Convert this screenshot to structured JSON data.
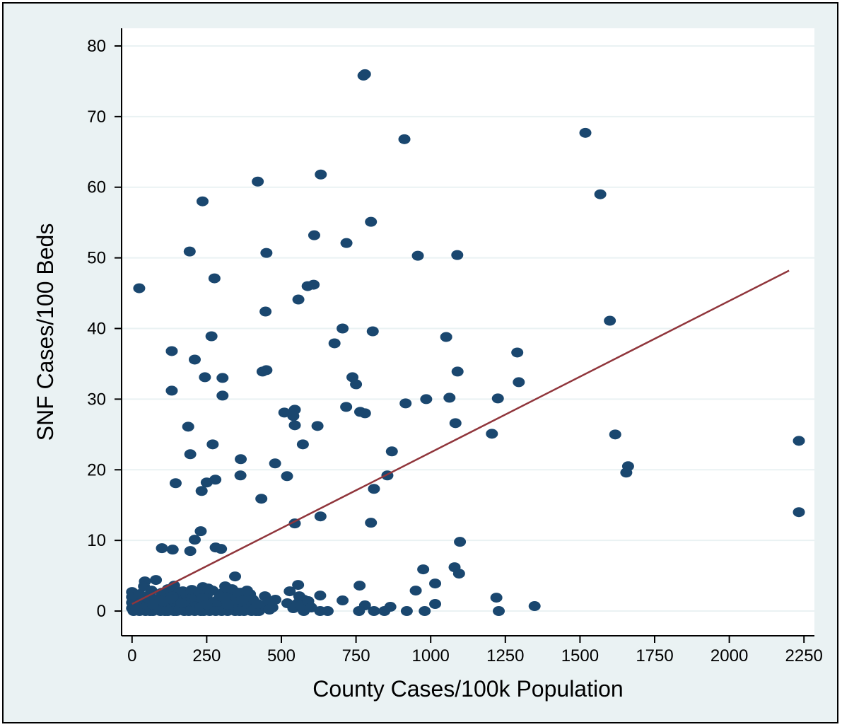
{
  "colors": {
    "outer_background": "#eaf2f3",
    "plot_background": "#ffffff",
    "grid": "#eaf2f3",
    "points": "#1a476f",
    "fit_line": "#90353b",
    "axis": "#000000"
  },
  "chart_data": {
    "type": "scatter",
    "title": "",
    "xlabel": "County Cases/100k Population",
    "ylabel": "SNF Cases/100 Beds",
    "xlim": [
      -35,
      2285
    ],
    "ylim": [
      -3.5,
      82.5
    ],
    "x_ticks": [
      0,
      250,
      500,
      750,
      1000,
      1250,
      1500,
      1750,
      2000,
      2250
    ],
    "y_ticks": [
      0,
      10,
      20,
      30,
      40,
      50,
      60,
      70,
      80
    ],
    "grid": "horizontal",
    "legend": "none",
    "fit_line": {
      "x": [
        0,
        2200
      ],
      "y": [
        1.0,
        48.2
      ]
    },
    "series": [
      {
        "points": [
          [
            780,
            76.0
          ],
          [
            775,
            75.8
          ],
          [
            912,
            66.8
          ],
          [
            1518,
            67.7
          ],
          [
            632,
            61.8
          ],
          [
            421,
            60.8
          ],
          [
            1568,
            59.0
          ],
          [
            236,
            58.0
          ],
          [
            800,
            55.1
          ],
          [
            610,
            53.2
          ],
          [
            718,
            52.1
          ],
          [
            193,
            50.9
          ],
          [
            450,
            50.7
          ],
          [
            957,
            50.3
          ],
          [
            1089,
            50.4
          ],
          [
            276,
            47.1
          ],
          [
            24,
            45.7
          ],
          [
            588,
            46.0
          ],
          [
            608,
            46.2
          ],
          [
            557,
            44.1
          ],
          [
            447,
            42.4
          ],
          [
            1600,
            41.1
          ],
          [
            705,
            40.0
          ],
          [
            806,
            39.6
          ],
          [
            266,
            38.9
          ],
          [
            678,
            37.9
          ],
          [
            1052,
            38.8
          ],
          [
            133,
            36.8
          ],
          [
            1290,
            36.6
          ],
          [
            210,
            35.6
          ],
          [
            437,
            33.9
          ],
          [
            450,
            34.1
          ],
          [
            1090,
            33.9
          ],
          [
            244,
            33.1
          ],
          [
            303,
            33.0
          ],
          [
            738,
            33.1
          ],
          [
            750,
            32.1
          ],
          [
            1295,
            32.4
          ],
          [
            133,
            31.2
          ],
          [
            303,
            30.5
          ],
          [
            1225,
            30.1
          ],
          [
            985,
            30.0
          ],
          [
            1063,
            30.2
          ],
          [
            916,
            29.4
          ],
          [
            717,
            28.9
          ],
          [
            510,
            28.1
          ],
          [
            545,
            28.5
          ],
          [
            764,
            28.2
          ],
          [
            780,
            28.0
          ],
          [
            540,
            27.6
          ],
          [
            1083,
            26.6
          ],
          [
            188,
            26.1
          ],
          [
            545,
            26.3
          ],
          [
            621,
            26.2
          ],
          [
            1205,
            25.1
          ],
          [
            1618,
            25.0
          ],
          [
            2233,
            24.1
          ],
          [
            270,
            23.6
          ],
          [
            572,
            23.6
          ],
          [
            195,
            22.2
          ],
          [
            870,
            22.6
          ],
          [
            364,
            21.5
          ],
          [
            479,
            20.9
          ],
          [
            1661,
            20.5
          ],
          [
            1655,
            19.6
          ],
          [
            363,
            19.2
          ],
          [
            519,
            19.1
          ],
          [
            855,
            19.2
          ],
          [
            279,
            18.6
          ],
          [
            250,
            18.2
          ],
          [
            146,
            18.1
          ],
          [
            810,
            17.3
          ],
          [
            233,
            17.0
          ],
          [
            433,
            15.9
          ],
          [
            631,
            13.4
          ],
          [
            2233,
            14.0
          ],
          [
            545,
            12.4
          ],
          [
            800,
            12.5
          ],
          [
            230,
            11.3
          ],
          [
            210,
            10.1
          ],
          [
            1098,
            9.8
          ],
          [
            100,
            8.9
          ],
          [
            136,
            8.7
          ],
          [
            195,
            8.5
          ],
          [
            280,
            9.0
          ],
          [
            298,
            8.8
          ],
          [
            1080,
            6.2
          ],
          [
            975,
            5.9
          ],
          [
            1095,
            5.3
          ],
          [
            345,
            4.9
          ],
          [
            80,
            4.4
          ],
          [
            43,
            4.2
          ],
          [
            1015,
            3.9
          ],
          [
            141,
            3.6
          ],
          [
            556,
            3.7
          ],
          [
            762,
            3.6
          ],
          [
            950,
            2.9
          ],
          [
            312,
            3.5
          ],
          [
            237,
            3.4
          ],
          [
            528,
            2.8
          ],
          [
            0,
            2.7
          ],
          [
            630,
            2.2
          ],
          [
            445,
            2.1
          ],
          [
            1220,
            1.9
          ],
          [
            480,
            1.6
          ],
          [
            705,
            1.5
          ],
          [
            575,
            1.6
          ],
          [
            520,
            1.1
          ],
          [
            1015,
            1.0
          ],
          [
            1348,
            0.7
          ],
          [
            865,
            0.6
          ],
          [
            780,
            0.8
          ],
          [
            760,
            0.0
          ],
          [
            810,
            0.0
          ],
          [
            845,
            0.0
          ],
          [
            920,
            0.0
          ],
          [
            980,
            0.0
          ],
          [
            1228,
            0.0
          ],
          [
            630,
            0.0
          ],
          [
            655,
            0.0
          ],
          [
            575,
            0.0
          ],
          [
            425,
            0.0
          ],
          [
            415,
            0.0
          ],
          [
            375,
            0.0
          ],
          [
            345,
            0.0
          ],
          [
            320,
            0.0
          ],
          [
            280,
            0.0
          ],
          [
            260,
            0.0
          ],
          [
            230,
            0.0
          ],
          [
            210,
            0.0
          ],
          [
            175,
            0.0
          ],
          [
            150,
            0.0
          ],
          [
            120,
            0.0
          ],
          [
            95,
            0.0
          ],
          [
            70,
            0.0
          ],
          [
            45,
            0.0
          ],
          [
            25,
            0.0
          ],
          [
            5,
            0.0
          ],
          [
            0,
            0.4
          ],
          [
            0,
            1.2
          ],
          [
            0,
            2.0
          ],
          [
            10,
            0.8
          ],
          [
            15,
            1.6
          ],
          [
            30,
            0.3
          ],
          [
            35,
            1.4
          ],
          [
            50,
            0.9
          ],
          [
            55,
            2.2
          ],
          [
            60,
            0.5
          ],
          [
            75,
            1.7
          ],
          [
            85,
            0.6
          ],
          [
            90,
            1.1
          ],
          [
            105,
            0.4
          ],
          [
            110,
            1.9
          ],
          [
            115,
            0.9
          ],
          [
            125,
            1.4
          ],
          [
            130,
            0.3
          ],
          [
            145,
            1.0
          ],
          [
            155,
            2.5
          ],
          [
            160,
            0.6
          ],
          [
            170,
            1.5
          ],
          [
            180,
            0.8
          ],
          [
            185,
            1.9
          ],
          [
            195,
            2.4
          ],
          [
            200,
            0.4
          ],
          [
            205,
            1.2
          ],
          [
            215,
            0.7
          ],
          [
            220,
            2.0
          ],
          [
            240,
            1.4
          ],
          [
            245,
            0.5
          ],
          [
            250,
            2.2
          ],
          [
            265,
            1.0
          ],
          [
            270,
            2.9
          ],
          [
            285,
            0.6
          ],
          [
            290,
            1.7
          ],
          [
            300,
            1.1
          ],
          [
            305,
            2.6
          ],
          [
            315,
            0.4
          ],
          [
            325,
            1.4
          ],
          [
            330,
            2.1
          ],
          [
            340,
            0.8
          ],
          [
            350,
            1.8
          ],
          [
            360,
            0.3
          ],
          [
            365,
            2.6
          ],
          [
            380,
            1.2
          ],
          [
            390,
            0.6
          ],
          [
            395,
            2.4
          ],
          [
            405,
            1.6
          ],
          [
            440,
            0.7
          ],
          [
            455,
            1.3
          ],
          [
            470,
            0.5
          ],
          [
            540,
            0.4
          ],
          [
            555,
            1.1
          ],
          [
            560,
            2.1
          ],
          [
            565,
            0.8
          ],
          [
            590,
            1.4
          ],
          [
            600,
            0.5
          ],
          [
            40,
            3.5
          ],
          [
            65,
            2.9
          ],
          [
            100,
            2.6
          ],
          [
            120,
            3.1
          ],
          [
            170,
            2.8
          ],
          [
            200,
            3.0
          ],
          [
            225,
            2.7
          ],
          [
            255,
            3.2
          ],
          [
            270,
            0.2
          ],
          [
            335,
            3.1
          ],
          [
            355,
            2.6
          ],
          [
            385,
            2.9
          ],
          [
            60,
            0.0
          ],
          [
            110,
            0.0
          ],
          [
            140,
            0.0
          ],
          [
            190,
            0.0
          ],
          [
            240,
            0.0
          ],
          [
            300,
            0.0
          ],
          [
            360,
            0.0
          ],
          [
            400,
            0.0
          ],
          [
            20,
            0.5
          ],
          [
            80,
            0.2
          ],
          [
            160,
            0.3
          ],
          [
            230,
            0.6
          ],
          [
            310,
            0.2
          ],
          [
            410,
            0.3
          ],
          [
            50,
            1.9
          ],
          [
            95,
            1.5
          ],
          [
            135,
            2.1
          ],
          [
            175,
            1.3
          ],
          [
            235,
            1.8
          ],
          [
            275,
            1.3
          ],
          [
            320,
            0.9
          ],
          [
            370,
            1.5
          ],
          [
            420,
            1.0
          ],
          [
            460,
            0.2
          ],
          [
            5,
            1.0
          ],
          [
            15,
            0.2
          ],
          [
            25,
            2.4
          ],
          [
            70,
            0.9
          ],
          [
            130,
            1.7
          ],
          [
            165,
            1.1
          ],
          [
            250,
            0.9
          ],
          [
            295,
            2.1
          ]
        ]
      }
    ]
  }
}
